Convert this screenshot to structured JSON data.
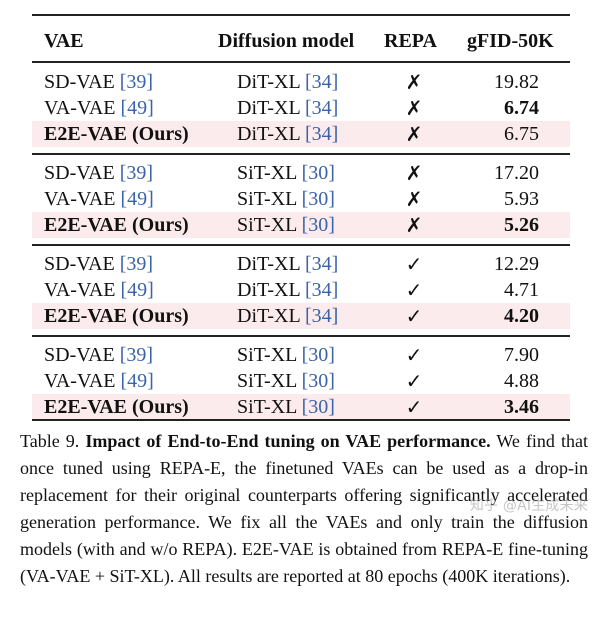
{
  "table": {
    "headers": {
      "vae": "VAE",
      "diffusion_model": "Diffusion model",
      "repa": "REPA",
      "gfid": "gFID-50K"
    },
    "groups": [
      {
        "rows": [
          {
            "vae_name": "SD-VAE",
            "vae_ref": "[39]",
            "model_name": "DiT-XL",
            "model_ref": "[34]",
            "repa": "✗",
            "gfid": "19.82",
            "ours": false,
            "gfid_bold": false
          },
          {
            "vae_name": "VA-VAE",
            "vae_ref": "[49]",
            "model_name": "DiT-XL",
            "model_ref": "[34]",
            "repa": "✗",
            "gfid": "6.74",
            "ours": false,
            "gfid_bold": true
          },
          {
            "vae_name": "E2E-VAE (Ours)",
            "vae_ref": "",
            "model_name": "DiT-XL",
            "model_ref": "[34]",
            "repa": "✗",
            "gfid": "6.75",
            "ours": true,
            "gfid_bold": false
          }
        ]
      },
      {
        "rows": [
          {
            "vae_name": "SD-VAE",
            "vae_ref": "[39]",
            "model_name": "SiT-XL",
            "model_ref": "[30]",
            "repa": "✗",
            "gfid": "17.20",
            "ours": false,
            "gfid_bold": false
          },
          {
            "vae_name": "VA-VAE",
            "vae_ref": "[49]",
            "model_name": "SiT-XL",
            "model_ref": "[30]",
            "repa": "✗",
            "gfid": "5.93",
            "ours": false,
            "gfid_bold": false
          },
          {
            "vae_name": "E2E-VAE (Ours)",
            "vae_ref": "",
            "model_name": "SiT-XL",
            "model_ref": "[30]",
            "repa": "✗",
            "gfid": "5.26",
            "ours": true,
            "gfid_bold": true
          }
        ]
      },
      {
        "rows": [
          {
            "vae_name": "SD-VAE",
            "vae_ref": "[39]",
            "model_name": "DiT-XL",
            "model_ref": "[34]",
            "repa": "✓",
            "gfid": "12.29",
            "ours": false,
            "gfid_bold": false
          },
          {
            "vae_name": "VA-VAE",
            "vae_ref": "[49]",
            "model_name": "DiT-XL",
            "model_ref": "[34]",
            "repa": "✓",
            "gfid": "4.71",
            "ours": false,
            "gfid_bold": false
          },
          {
            "vae_name": "E2E-VAE (Ours)",
            "vae_ref": "",
            "model_name": "DiT-XL",
            "model_ref": "[34]",
            "repa": "✓",
            "gfid": "4.20",
            "ours": true,
            "gfid_bold": true
          }
        ]
      },
      {
        "rows": [
          {
            "vae_name": "SD-VAE",
            "vae_ref": "[39]",
            "model_name": "SiT-XL",
            "model_ref": "[30]",
            "repa": "✓",
            "gfid": "7.90",
            "ours": false,
            "gfid_bold": false
          },
          {
            "vae_name": "VA-VAE",
            "vae_ref": "[49]",
            "model_name": "SiT-XL",
            "model_ref": "[30]",
            "repa": "✓",
            "gfid": "4.88",
            "ours": false,
            "gfid_bold": false
          },
          {
            "vae_name": "E2E-VAE (Ours)",
            "vae_ref": "",
            "model_name": "SiT-XL",
            "model_ref": "[30]",
            "repa": "✓",
            "gfid": "3.46",
            "ours": true,
            "gfid_bold": true
          }
        ]
      }
    ]
  },
  "caption": {
    "label": "Table 9.",
    "title": "Impact of End-to-End tuning on VAE performance.",
    "body": "We find that once tuned using REPA-E, the finetuned VAEs can be used as a drop-in replacement for their original counterparts offering significantly accelerated generation performance. We fix all the VAEs and only train the diffusion models (with and w/o REPA). E2E-VAE is obtained from REPA-E fine-tuning (VA-VAE + SiT-XL). All results are reported at 80 epochs (400K iterations)."
  },
  "watermark": "知乎 @AI生成未来",
  "colors": {
    "highlight_row": "#fcebec",
    "reference_link": "#3b63a8",
    "text": "#111111"
  }
}
